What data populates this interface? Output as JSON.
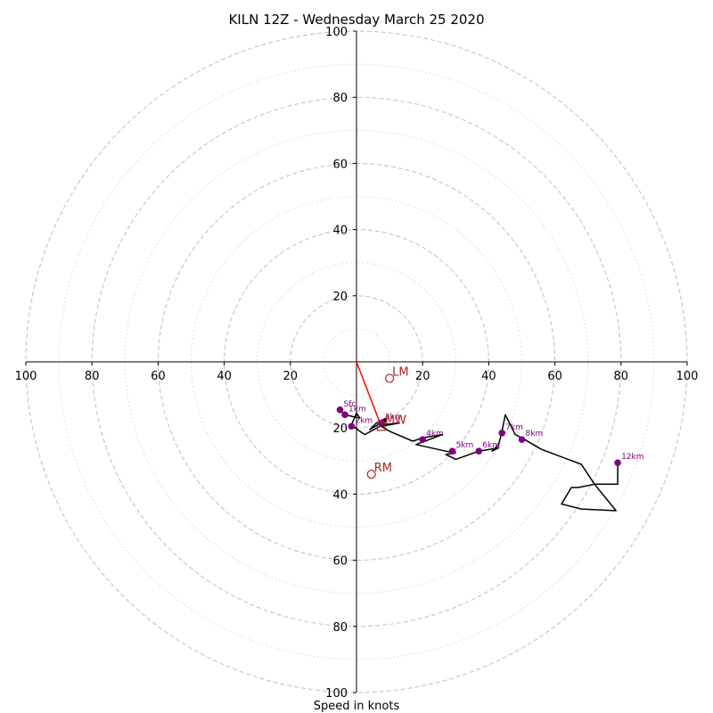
{
  "chart_data": {
    "type": "hodograph",
    "title": "KILN 12Z - Wednesday March 25 2020",
    "xlabel": "Speed in knots",
    "ring_labels": [
      "20",
      "40",
      "60",
      "80",
      "100"
    ],
    "ring_label_values": [
      20,
      40,
      60,
      80,
      100
    ],
    "major_rings": [
      20,
      40,
      60,
      80,
      100
    ],
    "minor_rings": [
      10,
      30,
      50,
      70,
      90
    ],
    "xlim": [
      -100,
      100
    ],
    "ylim": [
      -100,
      100
    ],
    "hodograph_line": [
      [
        -5,
        -14.5
      ],
      [
        -3.5,
        -16
      ],
      [
        1,
        -17
      ],
      [
        0,
        -15.5
      ],
      [
        -1.5,
        -19
      ],
      [
        1,
        -21
      ],
      [
        2.5,
        -22
      ],
      [
        8,
        -19
      ],
      [
        9,
        -17.5
      ],
      [
        4,
        -20.5
      ],
      [
        6,
        -18.5
      ],
      [
        9,
        -17
      ],
      [
        8,
        -19
      ],
      [
        13,
        -18.5
      ],
      [
        7.5,
        -19.5
      ],
      [
        10,
        -21
      ],
      [
        17,
        -24
      ],
      [
        20,
        -23
      ],
      [
        26,
        -22
      ],
      [
        18,
        -25
      ],
      [
        27,
        -27
      ],
      [
        30,
        -27.5
      ],
      [
        27,
        -28
      ],
      [
        30,
        -29.5
      ],
      [
        37,
        -27
      ],
      [
        43,
        -26
      ],
      [
        41,
        -27
      ],
      [
        43,
        -25
      ],
      [
        44,
        -21
      ],
      [
        45,
        -16
      ],
      [
        48,
        -22
      ],
      [
        50,
        -23
      ],
      [
        56,
        -26.5
      ],
      [
        68,
        -31
      ],
      [
        72,
        -37
      ],
      [
        67,
        -38
      ],
      [
        65,
        -38
      ],
      [
        62,
        -43
      ],
      [
        68,
        -44.5
      ],
      [
        78.5,
        -45
      ],
      [
        72,
        -37
      ],
      [
        79,
        -37
      ],
      [
        79,
        -30.5
      ]
    ],
    "height_markers": [
      {
        "label": "Sfc",
        "u": -5,
        "v": -14.5
      },
      {
        "label": "1km",
        "u": -3.5,
        "v": -16
      },
      {
        "label": "2km",
        "u": -1.5,
        "v": -19.5
      },
      {
        "label": "3km",
        "u": 7.5,
        "v": -18.5
      },
      {
        "label": "4km",
        "u": 20,
        "v": -23.5
      },
      {
        "label": "5km",
        "u": 29,
        "v": -27
      },
      {
        "label": "6km",
        "u": 37,
        "v": -27
      },
      {
        "label": "7km",
        "u": 44,
        "v": -21.5
      },
      {
        "label": "8km",
        "u": 50,
        "v": -23.5
      },
      {
        "label": "12km",
        "u": 79,
        "v": -30.5
      }
    ],
    "storm_motion": [
      {
        "label": "LM",
        "u": 10,
        "v": -5
      },
      {
        "label": "RM",
        "u": 4.5,
        "v": -34
      }
    ],
    "mean_wind": {
      "label": "MW",
      "u": 7.5,
      "v": -19.5
    },
    "motion_vector": {
      "u1": 0,
      "v1": 0,
      "u2": 7.5,
      "v2": -19.5
    },
    "colors": {
      "hodograph": "#000000",
      "markers": "#800080",
      "storm": "#b22222",
      "vector": "#ff0000",
      "major_ring": "#bfbfbf",
      "minor_ring": "#d3d3d3"
    }
  }
}
